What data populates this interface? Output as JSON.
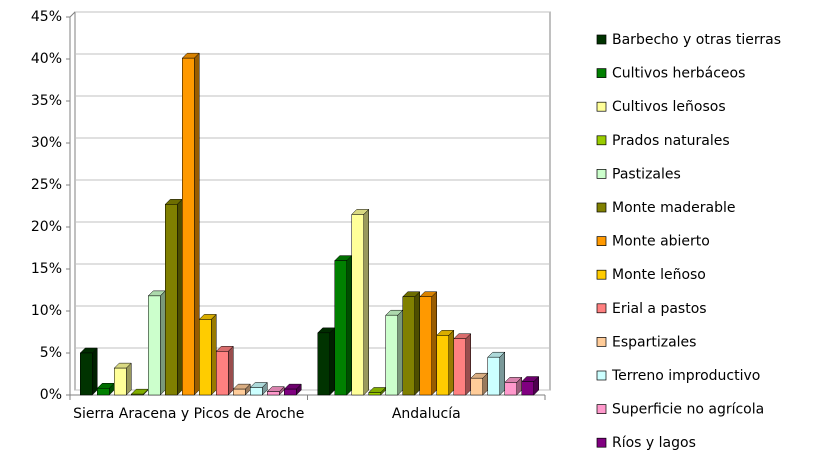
{
  "chart_data": {
    "type": "bar3d",
    "categories": [
      "Sierra Aracena y Picos de Aroche",
      "Andalucía"
    ],
    "series": [
      {
        "name": "Barbecho y otras tierras",
        "color": "#003300",
        "values": [
          5.0,
          7.4
        ]
      },
      {
        "name": "Cultivos herbáceos",
        "color": "#008000",
        "values": [
          0.8,
          16.0
        ]
      },
      {
        "name": "Cultivos leñosos",
        "color": "#ffff99",
        "values": [
          3.2,
          21.5
        ]
      },
      {
        "name": "Prados naturales",
        "color": "#99cc00",
        "values": [
          0.1,
          0.3
        ]
      },
      {
        "name": "Pastizales",
        "color": "#ccffcc",
        "values": [
          11.8,
          9.5
        ]
      },
      {
        "name": "Monte maderable",
        "color": "#808000",
        "values": [
          22.7,
          11.7
        ]
      },
      {
        "name": "Monte abierto",
        "color": "#ff9900",
        "values": [
          40.1,
          11.7
        ]
      },
      {
        "name": "Monte leñoso",
        "color": "#ffcc00",
        "values": [
          9.0,
          7.1
        ]
      },
      {
        "name": "Erial a pastos",
        "color": "#ff8080",
        "values": [
          5.2,
          6.7
        ]
      },
      {
        "name": "Espartizales",
        "color": "#ffcc99",
        "values": [
          0.7,
          2.0
        ]
      },
      {
        "name": "Terreno improductivo",
        "color": "#ccffff",
        "values": [
          0.9,
          4.5
        ]
      },
      {
        "name": "Superficie no agrícola",
        "color": "#ff99cc",
        "values": [
          0.4,
          1.5
        ]
      },
      {
        "name": "Ríos y lagos",
        "color": "#800080",
        "values": [
          0.7,
          1.6
        ]
      }
    ],
    "ylim": [
      0,
      45
    ],
    "yticks": [
      {
        "value": 0,
        "label": "0%"
      },
      {
        "value": 5,
        "label": "5%"
      },
      {
        "value": 10,
        "label": "10%"
      },
      {
        "value": 15,
        "label": "15%"
      },
      {
        "value": 20,
        "label": "20%"
      },
      {
        "value": 25,
        "label": "25%"
      },
      {
        "value": 30,
        "label": "30%"
      },
      {
        "value": 35,
        "label": "35%"
      },
      {
        "value": 40,
        "label": "40%"
      },
      {
        "value": 45,
        "label": "45%"
      }
    ],
    "grid": true,
    "legend": "right"
  }
}
